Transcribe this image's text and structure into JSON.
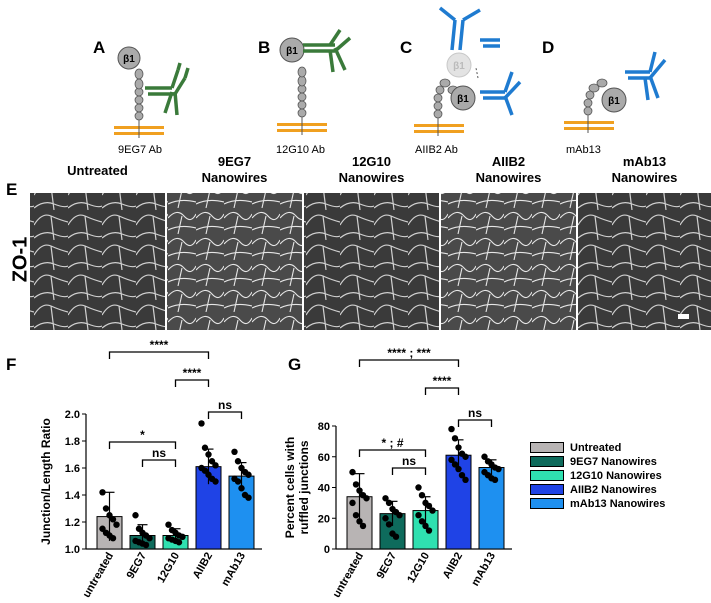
{
  "schematics": [
    {
      "letter": "A",
      "label": "9EG7 Ab",
      "beta": "β1"
    },
    {
      "letter": "B",
      "label": "12G10 Ab",
      "beta": "β1"
    },
    {
      "letter": "C",
      "label": "AIIB2 Ab",
      "beta": "β1",
      "ghost_beta": "β1"
    },
    {
      "letter": "D",
      "label": "mAb13",
      "beta": "β1"
    }
  ],
  "panel_e": {
    "letter": "E",
    "row_label": "ZO-1",
    "columns": [
      {
        "line1": "Untreated",
        "line2": ""
      },
      {
        "line1": "9EG7",
        "line2": "Nanowires"
      },
      {
        "line1": "12G10",
        "line2": "Nanowires"
      },
      {
        "line1": "AIIB2",
        "line2": "Nanowires"
      },
      {
        "line1": "mAb13",
        "line2": "Nanowires"
      }
    ]
  },
  "colors": {
    "untreated": "#b8b4b4",
    "9EG7": "#0e6b5c",
    "12G10": "#2fe0b0",
    "AIIB2": "#1f43e6",
    "mAb13": "#1e90f0",
    "antibody_green": "#3a7a3a",
    "antibody_blue": "#1f7bd0",
    "membrane": "#f0a020"
  },
  "legend": [
    "Untreated",
    "9EG7 Nanowires",
    "12G10 Nanowires",
    "AIIB2 Nanowires",
    "mAb13 Nanowires"
  ],
  "chart_data": [
    {
      "panel": "F",
      "type": "bar",
      "ylabel": "Junction/Length Ratio",
      "categories": [
        "untreated",
        "9EG7",
        "12G10",
        "AIIB2",
        "mAb13"
      ],
      "values": [
        1.24,
        1.1,
        1.1,
        1.61,
        1.54
      ],
      "errors": [
        0.18,
        0.08,
        0.05,
        0.13,
        0.1
      ],
      "points": [
        [
          1.42,
          1.3,
          1.25,
          1.22,
          1.18,
          1.15,
          1.12,
          1.1,
          1.08
        ],
        [
          1.25,
          1.15,
          1.12,
          1.1,
          1.08,
          1.06,
          1.05,
          1.04,
          1.03
        ],
        [
          1.18,
          1.14,
          1.12,
          1.1,
          1.09,
          1.08,
          1.07,
          1.06,
          1.05
        ],
        [
          1.93,
          1.75,
          1.7,
          1.65,
          1.62,
          1.6,
          1.58,
          1.55,
          1.52,
          1.5
        ],
        [
          1.72,
          1.65,
          1.6,
          1.57,
          1.55,
          1.52,
          1.5,
          1.45,
          1.4,
          1.38
        ]
      ],
      "ylim": [
        1.0,
        2.0
      ],
      "yticks": [
        "1.0",
        "1.2",
        "1.4",
        "1.6",
        "1.8",
        "2.0"
      ],
      "significance": [
        {
          "from": 0,
          "to": 3,
          "label": "****"
        },
        {
          "from": 2,
          "to": 3,
          "label": "****"
        },
        {
          "from": 3,
          "to": 4,
          "label": "ns"
        },
        {
          "from": 0,
          "to": 2,
          "label": "*"
        },
        {
          "from": 1,
          "to": 2,
          "label": "ns"
        }
      ]
    },
    {
      "panel": "G",
      "type": "bar",
      "ylabel_line1": "Percent cells with",
      "ylabel_line2": "ruffled junctions",
      "categories": [
        "untreated",
        "9EG7",
        "12G10",
        "AIIB2",
        "mAb13"
      ],
      "values": [
        34,
        23,
        25,
        61,
        53
      ],
      "errors": [
        15,
        8,
        9,
        10,
        5
      ],
      "points": [
        [
          50,
          42,
          38,
          35,
          33,
          30,
          22,
          18,
          15
        ],
        [
          33,
          30,
          26,
          24,
          22,
          20,
          16,
          10,
          8
        ],
        [
          40,
          35,
          30,
          28,
          25,
          22,
          18,
          15,
          12
        ],
        [
          78,
          72,
          66,
          62,
          60,
          58,
          55,
          52,
          48,
          45
        ],
        [
          60,
          57,
          55,
          53,
          52,
          50,
          48,
          46,
          45
        ]
      ],
      "ylim": [
        0,
        80
      ],
      "yticks": [
        "0",
        "20",
        "40",
        "60",
        "80"
      ],
      "significance": [
        {
          "from": 0,
          "to": 3,
          "label": "**** ; ***"
        },
        {
          "from": 2,
          "to": 3,
          "label": "****"
        },
        {
          "from": 3,
          "to": 4,
          "label": "ns"
        },
        {
          "from": 0,
          "to": 2,
          "label": "* ; #"
        },
        {
          "from": 1,
          "to": 2,
          "label": "ns"
        }
      ]
    }
  ]
}
